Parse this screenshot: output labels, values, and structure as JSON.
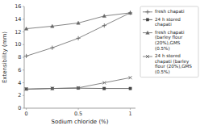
{
  "chart_data": {
    "type": "line",
    "x": [
      0,
      0.25,
      0.5,
      0.75,
      1.0
    ],
    "series": [
      {
        "name": "fresh chapati",
        "color": "#666666",
        "marker": "plus",
        "values": [
          8.2,
          9.5,
          11.0,
          13.0,
          15.0
        ]
      },
      {
        "name": "24 h stored\nchapati",
        "color": "#444444",
        "marker": "square",
        "values": [
          3.0,
          3.1,
          3.15,
          3.1,
          3.1
        ]
      },
      {
        "name": "fresh chapati\n(barley flour\n(20%),GMS\n(0.5%)",
        "color": "#666666",
        "marker": "triangle",
        "values": [
          12.5,
          12.9,
          13.4,
          14.5,
          15.0
        ]
      },
      {
        "name": "24 h stored\nchapati (barley\nflour (20%),GMS\n(0.5%)",
        "color": "#666666",
        "marker": "x",
        "values": [
          3.0,
          3.1,
          3.2,
          4.0,
          4.8
        ]
      }
    ],
    "xlabel": "Sodium chloride (%)",
    "ylabel": "Extensibility (mm)",
    "xlim": [
      -0.02,
      1.05
    ],
    "ylim": [
      0,
      16
    ],
    "xticks": [
      0,
      0.5,
      1.0
    ],
    "yticks": [
      0,
      2,
      4,
      6,
      8,
      10,
      12,
      14,
      16
    ],
    "grid": false,
    "legend": "right"
  }
}
